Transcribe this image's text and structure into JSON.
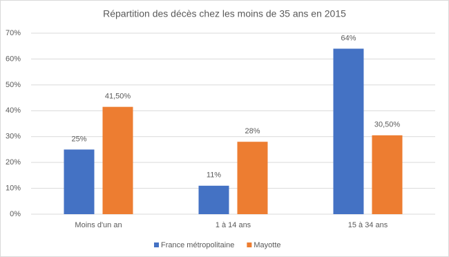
{
  "chart_data": {
    "type": "bar",
    "title": "Répartition des décès chez les moins de 35 ans en 2015",
    "categories": [
      "Moins d'un an",
      "1 à 14 ans",
      "15 à 34 ans"
    ],
    "series": [
      {
        "name": "France métropolitaine",
        "color": "#4472c4",
        "values": [
          25,
          11,
          64
        ],
        "value_labels": [
          "25%",
          "11%",
          "64%"
        ]
      },
      {
        "name": "Mayotte",
        "color": "#ed7d31",
        "values": [
          41.5,
          28,
          30.5
        ],
        "value_labels": [
          "41,50%",
          "28%",
          "30,50%"
        ]
      }
    ],
    "ylim": [
      0,
      70
    ],
    "yticks": [
      {
        "value": 0,
        "label": "0%"
      },
      {
        "value": 10,
        "label": "10%"
      },
      {
        "value": 20,
        "label": "20%"
      },
      {
        "value": 30,
        "label": "30%"
      },
      {
        "value": 40,
        "label": "40%"
      },
      {
        "value": 50,
        "label": "50%"
      },
      {
        "value": 60,
        "label": "60%"
      },
      {
        "value": 70,
        "label": "70%"
      }
    ],
    "grid": true,
    "legend": "bottom"
  }
}
